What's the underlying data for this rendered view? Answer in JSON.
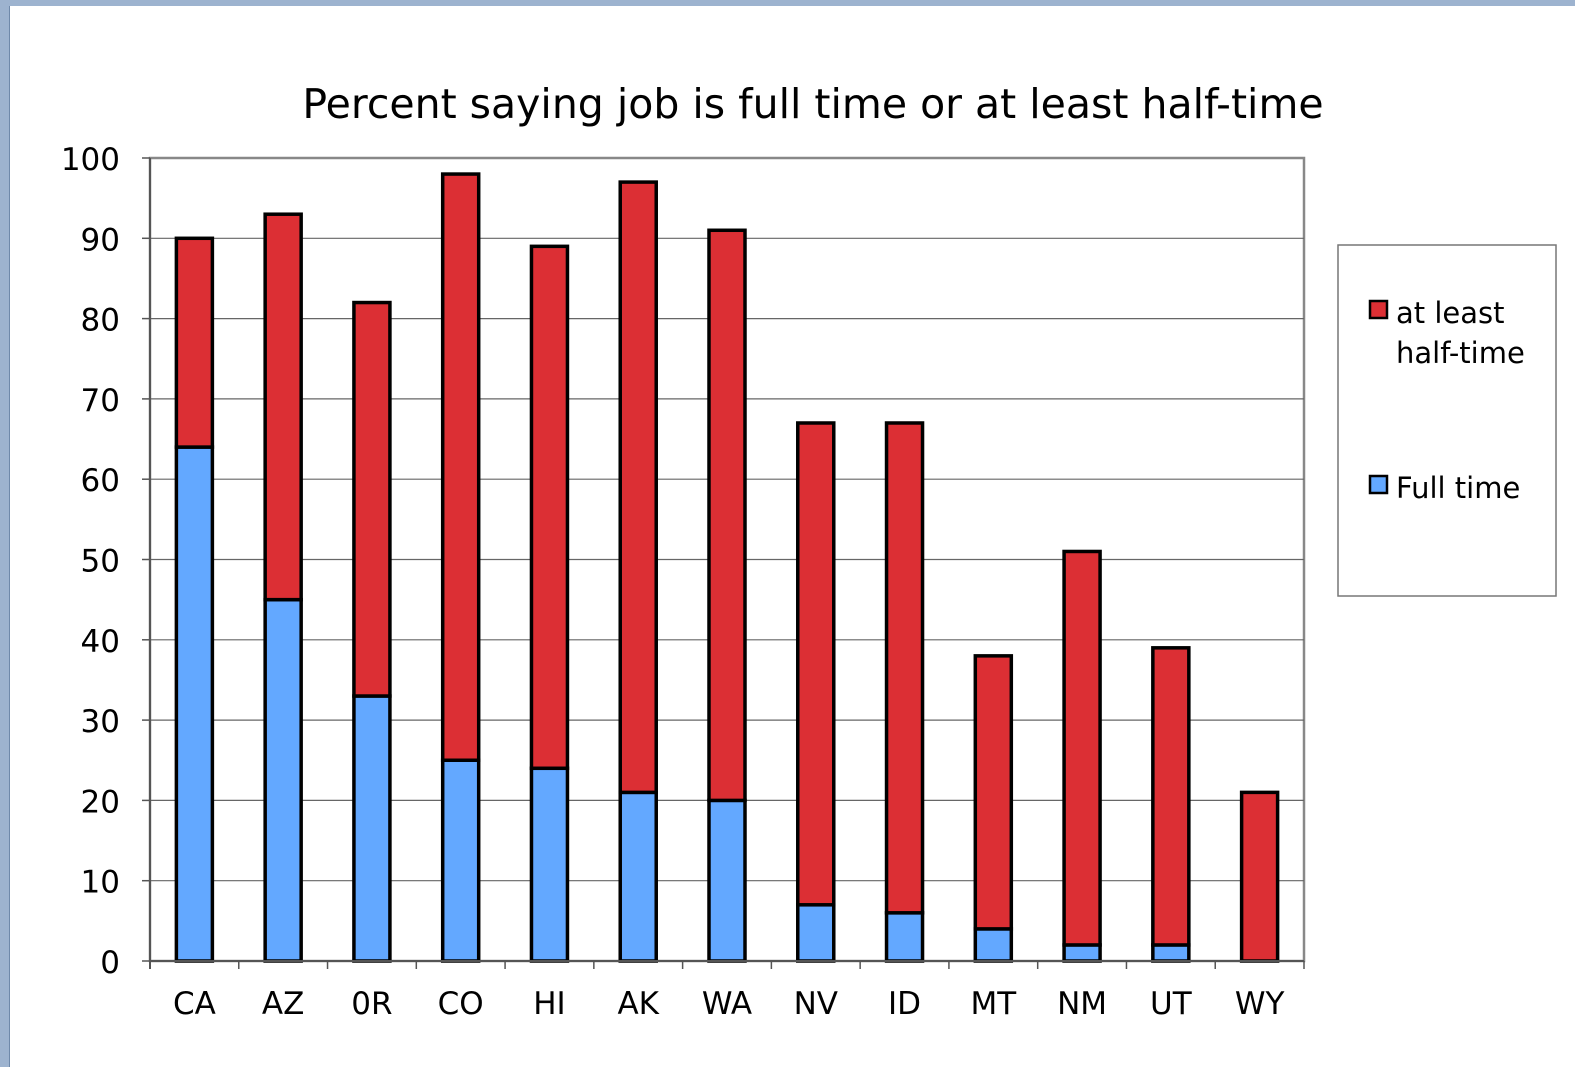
{
  "theme": {
    "frame_color": "#9db3cf",
    "frame_edge_color": "#6f89aa",
    "red": "#dc2f34",
    "blue": "#63a8ff",
    "grid_color": "#666666"
  },
  "chart_data": {
    "type": "bar",
    "stacked": true,
    "title": "Percent saying job is full time or at least half-time",
    "xlabel": "",
    "ylabel": "",
    "ylim": [
      0,
      100
    ],
    "y_ticks": [
      0,
      10,
      20,
      30,
      40,
      50,
      60,
      70,
      80,
      90,
      100
    ],
    "grid": true,
    "legend_position": "right",
    "categories": [
      "CA",
      "AZ",
      "0R",
      "CO",
      "HI",
      "AK",
      "WA",
      "NV",
      "ID",
      "MT",
      "NM",
      "UT",
      "WY"
    ],
    "series": [
      {
        "name": "Full time",
        "color": "#63a8ff",
        "values": [
          64,
          45,
          33,
          25,
          24,
          21,
          20,
          7,
          6,
          4,
          2,
          2,
          0
        ]
      },
      {
        "name": "at least half-time",
        "color": "#dc2f34",
        "values": [
          26,
          48,
          49,
          73,
          65,
          76,
          71,
          60,
          61,
          34,
          49,
          37,
          21
        ]
      }
    ],
    "legend": [
      {
        "lines": [
          "at least",
          "half-time"
        ],
        "color": "#dc2f34"
      },
      {
        "lines": [
          "Full time"
        ],
        "color": "#63a8ff"
      }
    ]
  }
}
